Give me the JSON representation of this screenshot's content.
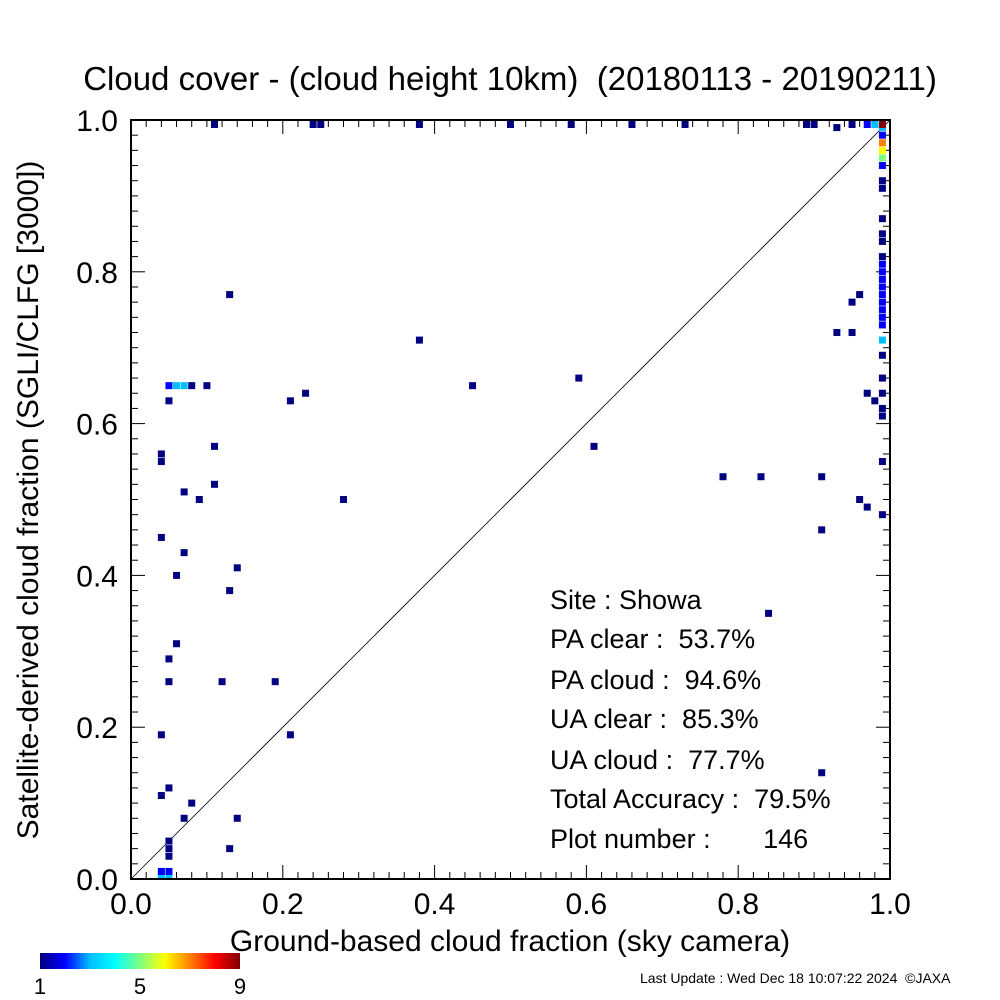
{
  "chart_data": {
    "type": "heatmap",
    "title": "Cloud cover - (cloud height 10km)  (20180113 - 20190211)",
    "xlabel": "Ground-based cloud fraction (sky camera)",
    "ylabel": "Satellite-derived cloud fraction (SGLI/CLFG [3000])",
    "xlim": [
      0.0,
      1.0
    ],
    "ylim": [
      0.0,
      1.0
    ],
    "x_ticks": [
      "0.0",
      "0.2",
      "0.4",
      "0.6",
      "0.8",
      "1.0"
    ],
    "y_ticks": [
      "0.0",
      "0.2",
      "0.4",
      "0.6",
      "0.8",
      "1.0"
    ],
    "grid": false,
    "diagonal_line": true,
    "colorbar": {
      "min": 1,
      "max": 9,
      "ticks": [
        "1",
        "5",
        "9"
      ],
      "colors": [
        "#000080",
        "#0000ff",
        "#00bfff",
        "#00ffff",
        "#7fff7f",
        "#ffff00",
        "#ff8000",
        "#ff0000",
        "#800000"
      ]
    },
    "points": [
      {
        "x": 0.04,
        "y": 0.0,
        "count": 3
      },
      {
        "x": 0.05,
        "y": 0.0,
        "count": 3
      },
      {
        "x": 0.04,
        "y": 0.01,
        "count": 2
      },
      {
        "x": 0.05,
        "y": 0.01,
        "count": 2
      },
      {
        "x": 0.05,
        "y": 0.03,
        "count": 1
      },
      {
        "x": 0.05,
        "y": 0.04,
        "count": 1
      },
      {
        "x": 0.05,
        "y": 0.05,
        "count": 1
      },
      {
        "x": 0.05,
        "y": 0.12,
        "count": 1
      },
      {
        "x": 0.04,
        "y": 0.11,
        "count": 1
      },
      {
        "x": 0.04,
        "y": 0.19,
        "count": 1
      },
      {
        "x": 0.05,
        "y": 0.26,
        "count": 1
      },
      {
        "x": 0.05,
        "y": 0.29,
        "count": 1
      },
      {
        "x": 0.06,
        "y": 0.31,
        "count": 1
      },
      {
        "x": 0.06,
        "y": 0.4,
        "count": 1
      },
      {
        "x": 0.07,
        "y": 0.43,
        "count": 1
      },
      {
        "x": 0.04,
        "y": 0.45,
        "count": 1
      },
      {
        "x": 0.07,
        "y": 0.51,
        "count": 1
      },
      {
        "x": 0.04,
        "y": 0.55,
        "count": 1
      },
      {
        "x": 0.04,
        "y": 0.56,
        "count": 1
      },
      {
        "x": 0.05,
        "y": 0.63,
        "count": 1
      },
      {
        "x": 0.05,
        "y": 0.65,
        "count": 2
      },
      {
        "x": 0.06,
        "y": 0.65,
        "count": 3
      },
      {
        "x": 0.07,
        "y": 0.65,
        "count": 3
      },
      {
        "x": 0.08,
        "y": 0.65,
        "count": 1
      },
      {
        "x": 0.1,
        "y": 0.65,
        "count": 1
      },
      {
        "x": 0.07,
        "y": 0.08,
        "count": 1
      },
      {
        "x": 0.08,
        "y": 0.1,
        "count": 1
      },
      {
        "x": 0.09,
        "y": 0.5,
        "count": 1
      },
      {
        "x": 0.11,
        "y": 0.52,
        "count": 1
      },
      {
        "x": 0.11,
        "y": 0.57,
        "count": 1
      },
      {
        "x": 0.11,
        "y": 1.0,
        "count": 1
      },
      {
        "x": 0.12,
        "y": 0.26,
        "count": 1
      },
      {
        "x": 0.13,
        "y": 0.04,
        "count": 1
      },
      {
        "x": 0.13,
        "y": 0.38,
        "count": 1
      },
      {
        "x": 0.13,
        "y": 0.77,
        "count": 1
      },
      {
        "x": 0.14,
        "y": 0.08,
        "count": 1
      },
      {
        "x": 0.14,
        "y": 0.41,
        "count": 1
      },
      {
        "x": 0.19,
        "y": 0.26,
        "count": 1
      },
      {
        "x": 0.21,
        "y": 0.19,
        "count": 1
      },
      {
        "x": 0.21,
        "y": 0.63,
        "count": 1
      },
      {
        "x": 0.23,
        "y": 0.64,
        "count": 1
      },
      {
        "x": 0.24,
        "y": 1.0,
        "count": 1
      },
      {
        "x": 0.25,
        "y": 1.0,
        "count": 1
      },
      {
        "x": 0.28,
        "y": 0.5,
        "count": 1
      },
      {
        "x": 0.38,
        "y": 0.71,
        "count": 1
      },
      {
        "x": 0.38,
        "y": 1.0,
        "count": 1
      },
      {
        "x": 0.45,
        "y": 0.65,
        "count": 1
      },
      {
        "x": 0.5,
        "y": 1.0,
        "count": 1
      },
      {
        "x": 0.58,
        "y": 1.0,
        "count": 1
      },
      {
        "x": 0.59,
        "y": 0.66,
        "count": 1
      },
      {
        "x": 0.61,
        "y": 0.57,
        "count": 1
      },
      {
        "x": 0.66,
        "y": 1.0,
        "count": 1
      },
      {
        "x": 0.73,
        "y": 1.0,
        "count": 1
      },
      {
        "x": 0.78,
        "y": 0.53,
        "count": 1
      },
      {
        "x": 0.83,
        "y": 0.53,
        "count": 1
      },
      {
        "x": 0.84,
        "y": 0.35,
        "count": 1
      },
      {
        "x": 0.89,
        "y": 1.0,
        "count": 1
      },
      {
        "x": 0.9,
        "y": 1.0,
        "count": 1
      },
      {
        "x": 0.91,
        "y": 0.14,
        "count": 1
      },
      {
        "x": 0.91,
        "y": 0.46,
        "count": 1
      },
      {
        "x": 0.91,
        "y": 0.53,
        "count": 1
      },
      {
        "x": 0.93,
        "y": 0.72,
        "count": 1
      },
      {
        "x": 0.93,
        "y": 0.99,
        "count": 1
      },
      {
        "x": 0.95,
        "y": 0.72,
        "count": 1
      },
      {
        "x": 0.95,
        "y": 0.76,
        "count": 1
      },
      {
        "x": 0.95,
        "y": 1.0,
        "count": 1
      },
      {
        "x": 0.96,
        "y": 0.5,
        "count": 1
      },
      {
        "x": 0.96,
        "y": 0.77,
        "count": 1
      },
      {
        "x": 0.97,
        "y": 0.49,
        "count": 1
      },
      {
        "x": 0.97,
        "y": 0.64,
        "count": 1
      },
      {
        "x": 0.97,
        "y": 1.0,
        "count": 2
      },
      {
        "x": 0.98,
        "y": 0.63,
        "count": 1
      },
      {
        "x": 0.98,
        "y": 1.0,
        "count": 3
      },
      {
        "x": 0.99,
        "y": 0.48,
        "count": 1
      },
      {
        "x": 0.99,
        "y": 0.55,
        "count": 1
      },
      {
        "x": 0.99,
        "y": 0.61,
        "count": 1
      },
      {
        "x": 0.99,
        "y": 0.62,
        "count": 1
      },
      {
        "x": 0.99,
        "y": 0.64,
        "count": 1
      },
      {
        "x": 0.99,
        "y": 0.66,
        "count": 1
      },
      {
        "x": 0.99,
        "y": 0.69,
        "count": 1
      },
      {
        "x": 0.99,
        "y": 0.71,
        "count": 3
      },
      {
        "x": 0.99,
        "y": 0.73,
        "count": 2
      },
      {
        "x": 0.99,
        "y": 0.74,
        "count": 2
      },
      {
        "x": 0.99,
        "y": 0.75,
        "count": 2
      },
      {
        "x": 0.99,
        "y": 0.76,
        "count": 2
      },
      {
        "x": 0.99,
        "y": 0.77,
        "count": 2
      },
      {
        "x": 0.99,
        "y": 0.78,
        "count": 2
      },
      {
        "x": 0.99,
        "y": 0.79,
        "count": 2
      },
      {
        "x": 0.99,
        "y": 0.8,
        "count": 2
      },
      {
        "x": 0.99,
        "y": 0.81,
        "count": 2
      },
      {
        "x": 0.99,
        "y": 0.82,
        "count": 1
      },
      {
        "x": 0.99,
        "y": 0.84,
        "count": 1
      },
      {
        "x": 0.99,
        "y": 0.85,
        "count": 1
      },
      {
        "x": 0.99,
        "y": 0.87,
        "count": 1
      },
      {
        "x": 0.99,
        "y": 0.91,
        "count": 1
      },
      {
        "x": 0.99,
        "y": 0.92,
        "count": 1
      },
      {
        "x": 0.99,
        "y": 0.94,
        "count": 2
      },
      {
        "x": 0.99,
        "y": 0.95,
        "count": 5
      },
      {
        "x": 0.99,
        "y": 0.96,
        "count": 6
      },
      {
        "x": 0.99,
        "y": 0.97,
        "count": 7
      },
      {
        "x": 0.99,
        "y": 0.98,
        "count": 2
      },
      {
        "x": 0.99,
        "y": 0.99,
        "count": 3
      },
      {
        "x": 0.99,
        "y": 1.0,
        "count": 9
      }
    ]
  },
  "stats": {
    "site": "Site : Showa",
    "pa_clear": "PA clear :  53.7%",
    "pa_cloud": "PA cloud :  94.6%",
    "ua_clear": "UA clear :  85.3%",
    "ua_cloud": "UA cloud :  77.7%",
    "total_accuracy": "Total Accuracy :  79.5%",
    "plot_number": "Plot number :       146"
  },
  "footer": "Last Update : Wed Dec 18 10:07:22 2024  ©JAXA"
}
